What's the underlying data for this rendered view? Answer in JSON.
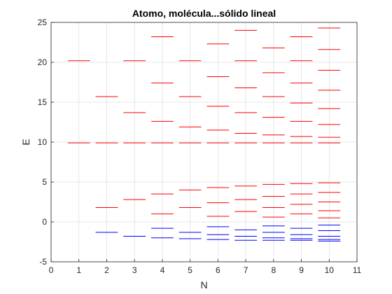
{
  "chart_data": {
    "type": "scatter",
    "mark": "horizontal-line-segment",
    "title": "Atomo, molécula...sólido lineal",
    "xlabel": "N",
    "ylabel": "E",
    "xlim": [
      0,
      11
    ],
    "ylim": [
      -5,
      25
    ],
    "xticks": [
      "0",
      "1",
      "2",
      "3",
      "4",
      "5",
      "6",
      "7",
      "8",
      "9",
      "10",
      "11"
    ],
    "yticks": [
      "-5",
      "0",
      "5",
      "10",
      "15",
      "20",
      "25"
    ],
    "grid": true,
    "segment_halfwidth": 0.4,
    "colors": {
      "upper": "#ff0000",
      "lower": "#0000ff"
    },
    "series": [
      {
        "color": "upper",
        "points": [
          {
            "x": 1,
            "y": 9.9
          },
          {
            "x": 1,
            "y": 20.2
          },
          {
            "x": 2,
            "y": 1.8
          },
          {
            "x": 2,
            "y": 9.9
          },
          {
            "x": 2,
            "y": 15.7
          },
          {
            "x": 3,
            "y": 2.8
          },
          {
            "x": 3,
            "y": 9.9
          },
          {
            "x": 3,
            "y": 13.7
          },
          {
            "x": 3,
            "y": 20.2
          },
          {
            "x": 4,
            "y": 1.0
          },
          {
            "x": 4,
            "y": 3.5
          },
          {
            "x": 4,
            "y": 9.9
          },
          {
            "x": 4,
            "y": 12.6
          },
          {
            "x": 4,
            "y": 17.4
          },
          {
            "x": 4,
            "y": 23.2
          },
          {
            "x": 5,
            "y": 1.8
          },
          {
            "x": 5,
            "y": 4.0
          },
          {
            "x": 5,
            "y": 9.9
          },
          {
            "x": 5,
            "y": 11.9
          },
          {
            "x": 5,
            "y": 15.7
          },
          {
            "x": 5,
            "y": 20.2
          },
          {
            "x": 6,
            "y": 0.7
          },
          {
            "x": 6,
            "y": 2.4
          },
          {
            "x": 6,
            "y": 4.3
          },
          {
            "x": 6,
            "y": 9.9
          },
          {
            "x": 6,
            "y": 11.5
          },
          {
            "x": 6,
            "y": 14.5
          },
          {
            "x": 6,
            "y": 18.2
          },
          {
            "x": 6,
            "y": 22.3
          },
          {
            "x": 7,
            "y": 1.3
          },
          {
            "x": 7,
            "y": 2.8
          },
          {
            "x": 7,
            "y": 4.5
          },
          {
            "x": 7,
            "y": 9.9
          },
          {
            "x": 7,
            "y": 11.1
          },
          {
            "x": 7,
            "y": 13.7
          },
          {
            "x": 7,
            "y": 16.8
          },
          {
            "x": 7,
            "y": 20.2
          },
          {
            "x": 7,
            "y": 24.0
          },
          {
            "x": 8,
            "y": 0.6
          },
          {
            "x": 8,
            "y": 1.8
          },
          {
            "x": 8,
            "y": 3.2
          },
          {
            "x": 8,
            "y": 4.7
          },
          {
            "x": 8,
            "y": 9.9
          },
          {
            "x": 8,
            "y": 10.9
          },
          {
            "x": 8,
            "y": 13.1
          },
          {
            "x": 8,
            "y": 15.7
          },
          {
            "x": 8,
            "y": 18.7
          },
          {
            "x": 8,
            "y": 21.8
          },
          {
            "x": 9,
            "y": 1.0
          },
          {
            "x": 9,
            "y": 2.2
          },
          {
            "x": 9,
            "y": 3.5
          },
          {
            "x": 9,
            "y": 4.8
          },
          {
            "x": 9,
            "y": 9.9
          },
          {
            "x": 9,
            "y": 10.7
          },
          {
            "x": 9,
            "y": 12.6
          },
          {
            "x": 9,
            "y": 14.9
          },
          {
            "x": 9,
            "y": 17.4
          },
          {
            "x": 9,
            "y": 20.2
          },
          {
            "x": 9,
            "y": 23.2
          },
          {
            "x": 10,
            "y": 0.5
          },
          {
            "x": 10,
            "y": 1.4
          },
          {
            "x": 10,
            "y": 2.5
          },
          {
            "x": 10,
            "y": 3.7
          },
          {
            "x": 10,
            "y": 4.9
          },
          {
            "x": 10,
            "y": 9.9
          },
          {
            "x": 10,
            "y": 10.6
          },
          {
            "x": 10,
            "y": 12.2
          },
          {
            "x": 10,
            "y": 14.2
          },
          {
            "x": 10,
            "y": 16.5
          },
          {
            "x": 10,
            "y": 19.0
          },
          {
            "x": 10,
            "y": 21.6
          },
          {
            "x": 10,
            "y": 24.3
          }
        ]
      },
      {
        "color": "lower",
        "points": [
          {
            "x": 2,
            "y": -1.3
          },
          {
            "x": 3,
            "y": -1.8
          },
          {
            "x": 4,
            "y": -0.8
          },
          {
            "x": 4,
            "y": -2.0
          },
          {
            "x": 5,
            "y": -1.3
          },
          {
            "x": 5,
            "y": -2.1
          },
          {
            "x": 6,
            "y": -0.6
          },
          {
            "x": 6,
            "y": -1.6
          },
          {
            "x": 6,
            "y": -2.2
          },
          {
            "x": 7,
            "y": -1.0
          },
          {
            "x": 7,
            "y": -1.8
          },
          {
            "x": 7,
            "y": -2.3
          },
          {
            "x": 8,
            "y": -0.5
          },
          {
            "x": 8,
            "y": -1.3
          },
          {
            "x": 8,
            "y": -2.0
          },
          {
            "x": 8,
            "y": -2.3
          },
          {
            "x": 9,
            "y": -0.8
          },
          {
            "x": 9,
            "y": -1.6
          },
          {
            "x": 9,
            "y": -2.1
          },
          {
            "x": 9,
            "y": -2.3
          },
          {
            "x": 10,
            "y": -0.4
          },
          {
            "x": 10,
            "y": -1.1
          },
          {
            "x": 10,
            "y": -1.8
          },
          {
            "x": 10,
            "y": -2.2
          },
          {
            "x": 10,
            "y": -2.4
          }
        ]
      }
    ]
  }
}
